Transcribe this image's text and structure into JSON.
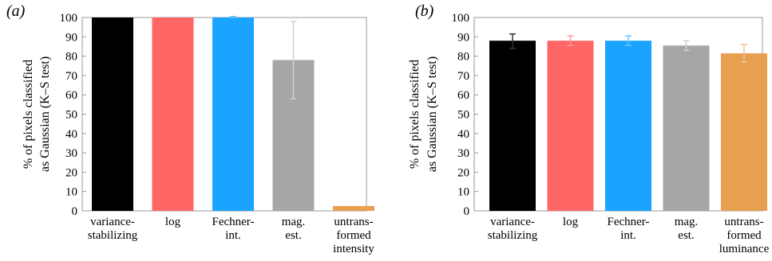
{
  "chart_data": [
    {
      "panel": "(a)",
      "type": "bar",
      "ylabel_lines": [
        "% of pixels classified",
        "as Gaussian (K–S test)"
      ],
      "ylim": [
        0,
        100
      ],
      "yticks": [
        0,
        10,
        20,
        30,
        40,
        50,
        60,
        70,
        80,
        90,
        100
      ],
      "grid": false,
      "categories": [
        [
          "variance-",
          "stabilizing"
        ],
        [
          "log"
        ],
        [
          "Fechner-",
          "int."
        ],
        [
          "mag.",
          "est."
        ],
        [
          "untrans-",
          "formed",
          "intensity"
        ]
      ],
      "values": [
        100,
        100,
        100,
        78,
        2.5
      ],
      "error_low": [
        100,
        100,
        100,
        58,
        2.5
      ],
      "error_high": [
        100,
        100,
        100.5,
        98,
        2.5
      ],
      "colors": [
        "#000000",
        "#ff6666",
        "#1aa3ff",
        "#a6a6a6",
        "#e8a050"
      ],
      "error_colors": [
        "#666666",
        "#ff9999",
        "#66c2ff",
        "#d0d0d0",
        "#f0c090"
      ]
    },
    {
      "panel": "(b)",
      "type": "bar",
      "ylabel_lines": [
        "% of pixels classified",
        "as Gaussian (K–S test)"
      ],
      "ylim": [
        0,
        100
      ],
      "yticks": [
        0,
        10,
        20,
        30,
        40,
        50,
        60,
        70,
        80,
        90,
        100
      ],
      "grid": false,
      "categories": [
        [
          "variance-",
          "stabilizing"
        ],
        [
          "log"
        ],
        [
          "Fechner-",
          "int."
        ],
        [
          "mag.",
          "est."
        ],
        [
          "untrans-",
          "formed",
          "luminance"
        ]
      ],
      "values": [
        88,
        88,
        88,
        85.5,
        81.5
      ],
      "error_low": [
        84,
        85.5,
        85.5,
        83,
        77
      ],
      "error_high": [
        91.5,
        90.5,
        90.5,
        88,
        86
      ],
      "colors": [
        "#000000",
        "#ff6666",
        "#1aa3ff",
        "#a6a6a6",
        "#e8a050"
      ],
      "error_colors": [
        "#333333",
        "#ff9999",
        "#66c2ff",
        "#d0d0d0",
        "#f0c090"
      ]
    }
  ]
}
